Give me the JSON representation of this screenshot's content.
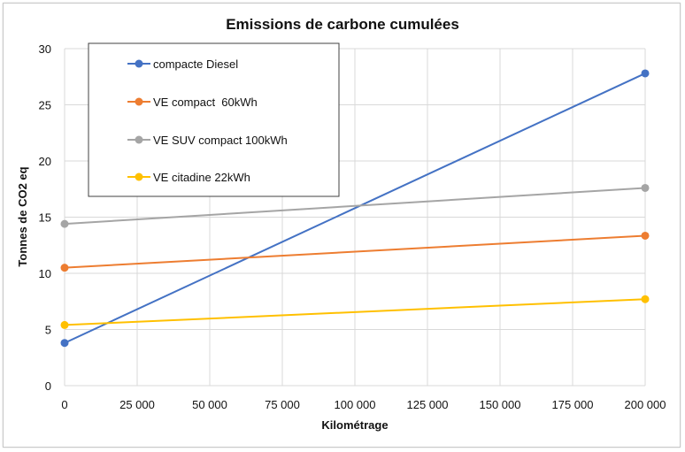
{
  "chart_data": {
    "type": "line",
    "title": "Emissions de carbone cumulées",
    "xlabel": "Kilométrage",
    "ylabel": "Tonnes de CO2 eq",
    "xlim": [
      0,
      200000
    ],
    "ylim": [
      0,
      30
    ],
    "x_ticks": [
      0,
      25000,
      50000,
      75000,
      100000,
      125000,
      150000,
      175000,
      200000
    ],
    "x_tick_labels": [
      "0",
      "25 000",
      "50 000",
      "75 000",
      "100 000",
      "125 000",
      "150 000",
      "175 000",
      "200 000"
    ],
    "y_ticks": [
      0,
      5,
      10,
      15,
      20,
      25,
      30
    ],
    "y_tick_labels": [
      "0",
      "5",
      "10",
      "15",
      "20",
      "25",
      "30"
    ],
    "grid": true,
    "legend_position": "top-left",
    "series": [
      {
        "name": "compacte Diesel",
        "color": "#4472C4",
        "x": [
          0,
          200000
        ],
        "y": [
          3.8,
          27.8
        ]
      },
      {
        "name": "VE compact  60kWh",
        "color": "#ED7D31",
        "x": [
          0,
          200000
        ],
        "y": [
          10.5,
          13.35
        ]
      },
      {
        "name": "VE SUV compact 100kWh",
        "color": "#A5A5A5",
        "x": [
          0,
          200000
        ],
        "y": [
          14.4,
          17.6
        ]
      },
      {
        "name": "VE citadine 22kWh",
        "color": "#FFC000",
        "x": [
          0,
          200000
        ],
        "y": [
          5.4,
          7.7
        ]
      }
    ]
  }
}
